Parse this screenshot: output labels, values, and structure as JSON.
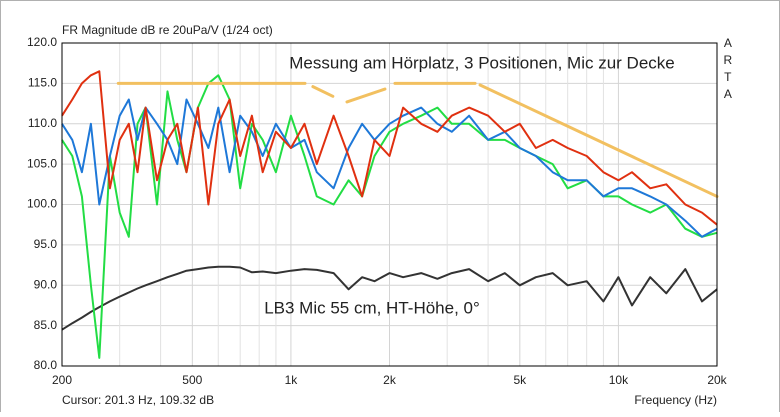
{
  "chart_data": {
    "type": "line",
    "title": "FR Magnitude dB re 20uPa/V (1/24 oct)",
    "watermark": "ARTA",
    "xlabel": "Frequency (Hz)",
    "cursor": "Cursor: 201.3 Hz, 109.32 dB",
    "annotations": [
      "Messung am Hörplatz, 3 Positionen, Mic zur Decke",
      "LB3 Mic 55 cm, HT-Höhe, 0°"
    ],
    "xscale": "log",
    "grid": true,
    "xlim": [
      200,
      20000
    ],
    "ylim": [
      80,
      120
    ],
    "xticks": [
      200,
      500,
      {
        "value": 1000,
        "label": "1k"
      },
      {
        "value": 2000,
        "label": "2k"
      },
      {
        "value": 5000,
        "label": "5k"
      },
      {
        "value": 10000,
        "label": "10k"
      },
      {
        "value": 20000,
        "label": "20k"
      }
    ],
    "xminor_ticks": [
      300,
      400,
      600,
      700,
      800,
      900,
      3000,
      4000,
      6000,
      7000,
      8000,
      9000
    ],
    "yticks": [
      {
        "value": 80,
        "label": "80.0"
      },
      {
        "value": 85,
        "label": "85.0"
      },
      {
        "value": 90,
        "label": "90.0"
      },
      {
        "value": 95,
        "label": "95.0"
      },
      {
        "value": 100,
        "label": "100.0"
      },
      {
        "value": 105,
        "label": "105.0"
      },
      {
        "value": 110,
        "label": "110.0"
      },
      {
        "value": 115,
        "label": "115.0"
      },
      {
        "value": 120,
        "label": "120.0"
      }
    ],
    "x": [
      200,
      215,
      230,
      245,
      260,
      280,
      300,
      320,
      340,
      360,
      390,
      420,
      450,
      480,
      520,
      560,
      600,
      650,
      700,
      760,
      820,
      900,
      1000,
      1100,
      1200,
      1350,
      1500,
      1650,
      1800,
      2000,
      2200,
      2500,
      2800,
      3100,
      3500,
      4000,
      4500,
      5000,
      5600,
      6300,
      7000,
      8000,
      9000,
      10000,
      11000,
      12500,
      14000,
      16000,
      18000,
      20000
    ],
    "series": [
      {
        "color": "#333333",
        "values": [
          84.5,
          85.3,
          86,
          86.7,
          87.3,
          88,
          88.6,
          89.1,
          89.6,
          90,
          90.5,
          91,
          91.4,
          91.8,
          92,
          92.2,
          92.3,
          92.3,
          92.2,
          91.6,
          91.7,
          91.5,
          91.8,
          92,
          91.9,
          91.5,
          89.5,
          91,
          90.5,
          91.5,
          91,
          91.5,
          90.8,
          91.5,
          92,
          90.5,
          91.5,
          90,
          91,
          91.5,
          90,
          90.5,
          88,
          91,
          87.5,
          91,
          89,
          92,
          88,
          89.5
        ]
      },
      {
        "color": "#22dd44",
        "values": [
          108,
          106,
          101,
          90,
          81,
          106,
          99,
          96,
          110,
          112,
          100,
          114,
          108,
          104,
          112,
          115,
          116,
          113,
          102,
          110,
          108,
          104,
          111,
          106,
          101,
          100,
          103,
          101,
          106,
          109,
          110,
          111,
          112,
          110,
          110,
          108,
          108,
          107,
          106,
          105,
          102,
          103,
          101,
          101,
          100,
          99,
          100,
          97,
          96,
          96.5
        ]
      },
      {
        "color": "#1e78d8",
        "values": [
          110,
          108,
          104,
          110,
          100,
          106,
          111,
          113,
          108,
          112,
          110,
          108,
          105,
          113,
          110,
          107,
          112,
          104,
          111,
          109,
          106,
          110,
          107,
          108,
          104,
          102,
          107,
          110,
          108,
          110,
          111,
          112,
          110,
          109,
          111,
          108,
          109,
          107,
          106,
          104,
          103,
          103,
          101,
          102,
          102,
          101,
          100,
          98,
          96,
          97
        ]
      },
      {
        "color": "#e03010",
        "values": [
          111,
          113,
          115,
          116,
          116.5,
          102,
          108,
          110,
          104,
          112,
          103,
          108,
          110,
          104,
          112,
          100,
          110,
          113,
          106,
          111,
          104,
          109,
          107,
          110,
          105,
          111,
          106,
          101,
          108,
          106,
          112,
          110,
          109,
          111,
          112,
          111,
          109,
          110,
          107,
          108,
          107,
          106,
          104,
          103,
          104,
          102,
          102.5,
          100,
          99,
          97.5
        ]
      }
    ],
    "reference_color": "#f2c060",
    "reference_segments": [
      [
        [
          297,
          115
        ],
        [
          1104,
          115
        ]
      ],
      [
        [
          1167,
          114.6
        ],
        [
          1343,
          113.4
        ]
      ],
      [
        [
          1483,
          112.7
        ],
        [
          1937,
          114.3
        ]
      ],
      [
        [
          2078,
          115
        ],
        [
          3650,
          115
        ]
      ],
      [
        [
          3780,
          114.8
        ],
        [
          20000,
          101
        ]
      ]
    ]
  }
}
